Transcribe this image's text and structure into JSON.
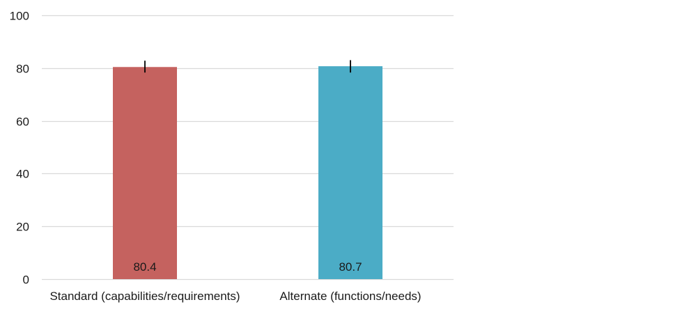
{
  "chart_data": {
    "type": "bar",
    "title": "",
    "xlabel": "",
    "ylabel": "",
    "ylim": [
      0,
      100
    ],
    "yticks": [
      0,
      20,
      40,
      60,
      80,
      100
    ],
    "grid": true,
    "categories": [
      "Standard (capabilities/requirements)",
      "Alternate (functions/needs)"
    ],
    "values": [
      80.4,
      80.7
    ],
    "value_labels": [
      "80.4",
      "80.7"
    ],
    "error_bars": [
      {
        "low": 78.3,
        "high": 82.8
      },
      {
        "low": 78.3,
        "high": 83.0
      }
    ],
    "colors": [
      "#c5625f",
      "#4bacc6"
    ],
    "grid_color": "#d9d9d9",
    "error_color": "#000000"
  }
}
